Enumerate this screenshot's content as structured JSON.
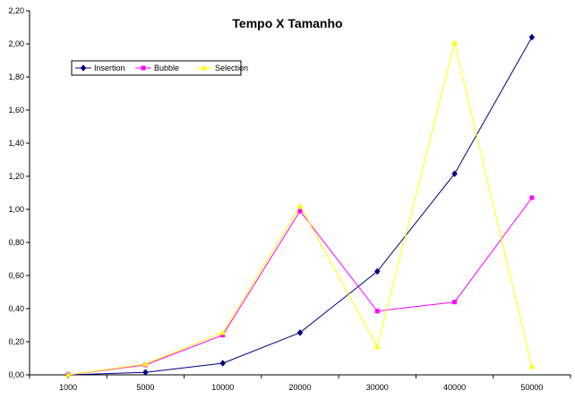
{
  "chart_data": {
    "type": "line",
    "title": "Tempo X Tamanho",
    "xlabel": "",
    "ylabel": "",
    "categories": [
      "1000",
      "5000",
      "10000",
      "20000",
      "30000",
      "40000",
      "50000"
    ],
    "ylim": [
      0,
      2.2
    ],
    "y_ticks": [
      "0,00",
      "0,20",
      "0,40",
      "0,60",
      "0,80",
      "1,00",
      "1,20",
      "1,40",
      "1,60",
      "1,80",
      "2,00",
      "2,20"
    ],
    "grid": false,
    "legend_position": "top-left",
    "series": [
      {
        "name": "Insertion",
        "color": "#000080",
        "marker": "diamond",
        "values": [
          0.0,
          0.015,
          0.07,
          0.255,
          0.625,
          1.215,
          2.04
        ]
      },
      {
        "name": "Bubble",
        "color": "#ff00ff",
        "marker": "square",
        "values": [
          0.0,
          0.06,
          0.24,
          0.99,
          0.385,
          0.44,
          1.07
        ]
      },
      {
        "name": "Selection",
        "color": "#ffff00",
        "marker": "triangle",
        "values": [
          0.0,
          0.065,
          0.255,
          1.02,
          0.17,
          2.005,
          0.05
        ]
      }
    ]
  }
}
